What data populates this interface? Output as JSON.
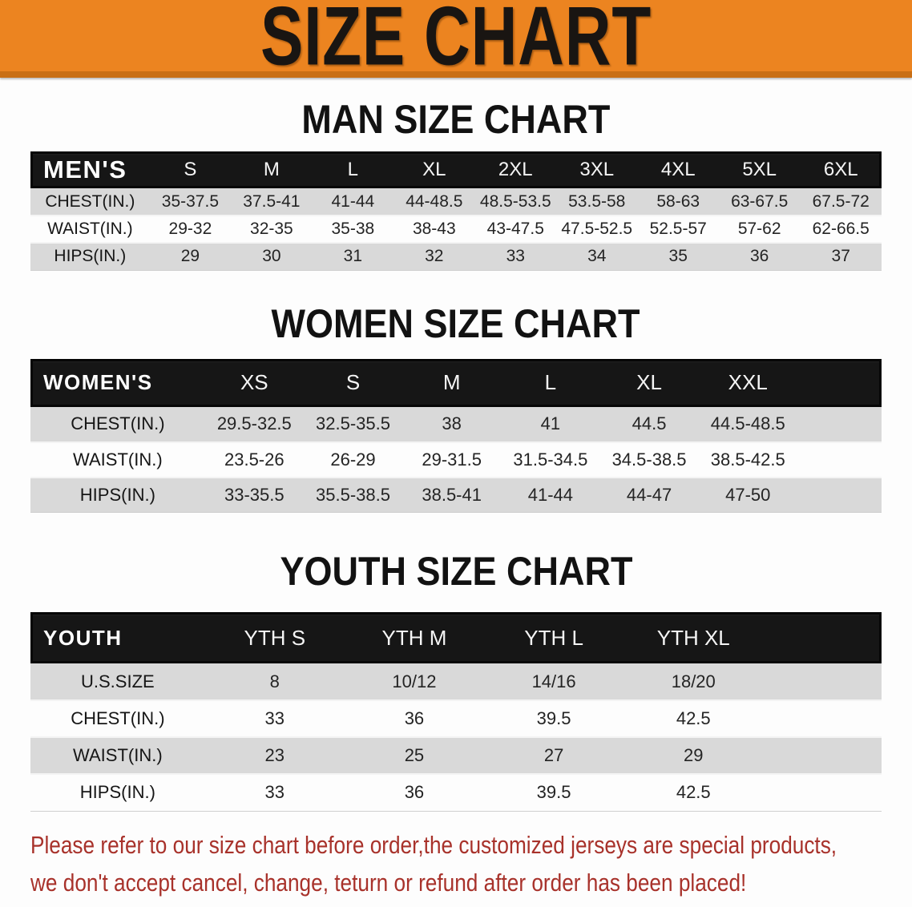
{
  "banner": {
    "title": "SIZE CHART",
    "bg_color": "#EC8420"
  },
  "sections": [
    {
      "heading": "MAN SIZE CHART",
      "table": {
        "label": "MEN'S",
        "columns": [
          "S",
          "M",
          "L",
          "XL",
          "2XL",
          "3XL",
          "4XL",
          "5XL",
          "6XL"
        ],
        "rows": [
          {
            "label": "CHEST(IN.)",
            "values": [
              "35-37.5",
              "37.5-41",
              "41-44",
              "44-48.5",
              "48.5-53.5",
              "53.5-58",
              "58-63",
              "63-67.5",
              "67.5-72"
            ]
          },
          {
            "label": "WAIST(IN.)",
            "values": [
              "29-32",
              "32-35",
              "35-38",
              "38-43",
              "43-47.5",
              "47.5-52.5",
              "52.5-57",
              "57-62",
              "62-66.5"
            ]
          },
          {
            "label": "HIPS(IN.)",
            "values": [
              "29",
              "30",
              "31",
              "32",
              "33",
              "34",
              "35",
              "36",
              "37"
            ]
          }
        ]
      }
    },
    {
      "heading": "WOMEN SIZE CHART",
      "table": {
        "label": "WOMEN'S",
        "columns": [
          "XS",
          "S",
          "M",
          "L",
          "XL",
          "XXL"
        ],
        "rows": [
          {
            "label": "CHEST(IN.)",
            "values": [
              "29.5-32.5",
              "32.5-35.5",
              "38",
              "41",
              "44.5",
              "44.5-48.5"
            ]
          },
          {
            "label": "WAIST(IN.)",
            "values": [
              "23.5-26",
              "26-29",
              "29-31.5",
              "31.5-34.5",
              "34.5-38.5",
              "38.5-42.5"
            ]
          },
          {
            "label": "HIPS(IN.)",
            "values": [
              "33-35.5",
              "35.5-38.5",
              "38.5-41",
              "41-44",
              "44-47",
              "47-50"
            ]
          }
        ]
      }
    },
    {
      "heading": "YOUTH SIZE CHART",
      "table": {
        "label": "YOUTH",
        "columns": [
          "YTH S",
          "YTH M",
          "YTH L",
          "YTH XL"
        ],
        "rows": [
          {
            "label": "U.S.SIZE",
            "values": [
              "8",
              "10/12",
              "14/16",
              "18/20"
            ]
          },
          {
            "label": "CHEST(IN.)",
            "values": [
              "33",
              "36",
              "39.5",
              "42.5"
            ]
          },
          {
            "label": "WAIST(IN.)",
            "values": [
              "23",
              "25",
              "27",
              "29"
            ]
          },
          {
            "label": "HIPS(IN.)",
            "values": [
              "33",
              "36",
              "39.5",
              "42.5"
            ]
          }
        ]
      }
    }
  ],
  "disclaimer": {
    "color": "#A8322B",
    "line1": "Please refer to our size chart before order,the customized jerseys are special products,",
    "line2": "we don't accept cancel, change, teturn or refund after order has been placed!"
  }
}
